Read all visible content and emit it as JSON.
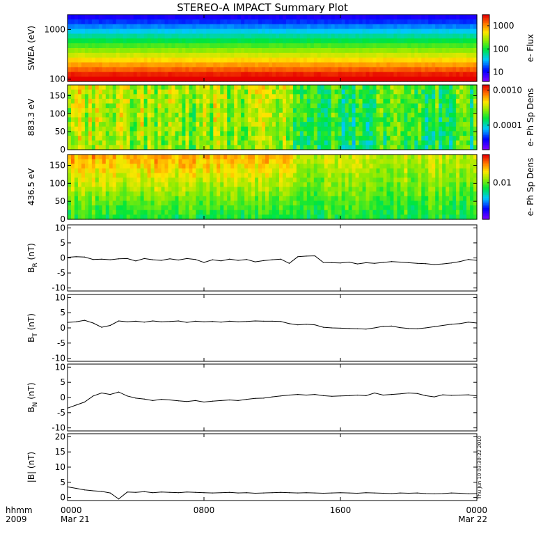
{
  "chart_data": [
    {
      "type": "heatmap",
      "title": "STEREO-A IMPACT Summary Plot",
      "ylabel": "SWEA (eV)",
      "y_scale": "log",
      "ylim": [
        90,
        2000
      ],
      "y_ticks": [
        "100",
        "1000"
      ],
      "colorbar": {
        "label": "e- Flux",
        "scale": "log",
        "ticks": [
          "10",
          "100",
          "1000"
        ],
        "range": [
          4,
          3000
        ]
      },
      "colormap": "rainbow"
    },
    {
      "type": "heatmap",
      "ylabel": "883.3 eV",
      "ylim": [
        0,
        180
      ],
      "y_ticks": [
        "0",
        "50",
        "100",
        "150"
      ],
      "colorbar": {
        "label": "e- Ph Sp Dens",
        "scale": "log",
        "ticks": [
          "0.0001",
          "0.0010"
        ],
        "range": [
          2e-05,
          0.0014
        ]
      },
      "colormap": "rainbow"
    },
    {
      "type": "heatmap",
      "ylabel": "436.5 eV",
      "ylim": [
        0,
        180
      ],
      "y_ticks": [
        "0",
        "50",
        "100",
        "150"
      ],
      "colorbar": {
        "label": "e- Ph Sp Dens",
        "scale": "log",
        "ticks": [
          "0.01"
        ],
        "range": [
          0.001,
          0.06
        ]
      },
      "colormap": "rainbow"
    },
    {
      "type": "line",
      "ylabel_main": "B",
      "ylabel_sub": "R",
      "ylabel_unit": " (nT)",
      "ylim": [
        -11,
        11
      ],
      "y_ticks": [
        -10,
        -5,
        0,
        5,
        10
      ],
      "x": [
        0,
        0.5,
        1,
        1.5,
        2,
        2.5,
        3,
        3.5,
        4,
        4.5,
        5,
        5.5,
        6,
        6.5,
        7,
        7.5,
        8,
        8.5,
        9,
        9.5,
        10,
        10.5,
        11,
        11.5,
        12,
        12.5,
        13,
        13.5,
        14,
        14.5,
        15,
        15.5,
        16,
        16.5,
        17,
        17.5,
        18,
        18.5,
        19,
        19.5,
        20,
        20.5,
        21,
        21.5,
        22,
        22.5,
        23,
        23.5,
        24
      ],
      "values": [
        0.2,
        0.4,
        0.3,
        -0.5,
        -0.4,
        -0.6,
        -0.3,
        -0.2,
        -1.0,
        -0.2,
        -0.6,
        -0.8,
        -0.3,
        -0.7,
        -0.2,
        -0.5,
        -1.5,
        -0.6,
        -1.0,
        -0.4,
        -0.8,
        -0.5,
        -1.3,
        -0.9,
        -0.6,
        -0.4,
        -1.8,
        0.4,
        0.6,
        0.7,
        -1.5,
        -1.6,
        -1.7,
        -1.4,
        -2.0,
        -1.6,
        -1.8,
        -1.5,
        -1.2,
        -1.4,
        -1.6,
        -1.8,
        -1.9,
        -2.2,
        -2.0,
        -1.7,
        -1.2,
        -0.5,
        -0.8
      ]
    },
    {
      "type": "line",
      "ylabel_main": "B",
      "ylabel_sub": "T",
      "ylabel_unit": " (nT)",
      "ylim": [
        -11,
        11
      ],
      "y_ticks": [
        -10,
        -5,
        0,
        5,
        10
      ],
      "x": [
        0,
        0.5,
        1,
        1.5,
        2,
        2.5,
        3,
        3.5,
        4,
        4.5,
        5,
        5.5,
        6,
        6.5,
        7,
        7.5,
        8,
        8.5,
        9,
        9.5,
        10,
        10.5,
        11,
        11.5,
        12,
        12.5,
        13,
        13.5,
        14,
        14.5,
        15,
        15.5,
        16,
        16.5,
        17,
        17.5,
        18,
        18.5,
        19,
        19.5,
        20,
        20.5,
        21,
        21.5,
        22,
        22.5,
        23,
        23.5,
        24
      ],
      "values": [
        1.8,
        2.0,
        2.5,
        1.6,
        0.2,
        0.8,
        2.3,
        2.0,
        2.2,
        1.9,
        2.3,
        2.0,
        2.1,
        2.3,
        1.8,
        2.2,
        2.0,
        2.1,
        1.9,
        2.2,
        2.0,
        2.1,
        2.3,
        2.2,
        2.2,
        2.1,
        1.4,
        1.0,
        1.2,
        1.0,
        0.2,
        0.0,
        -0.1,
        -0.2,
        -0.3,
        -0.4,
        0.0,
        0.5,
        0.6,
        0.1,
        -0.2,
        -0.3,
        0.0,
        0.4,
        0.8,
        1.2,
        1.4,
        1.9,
        1.6
      ]
    },
    {
      "type": "line",
      "ylabel_main": "B",
      "ylabel_sub": "N",
      "ylabel_unit": " (nT)",
      "ylim": [
        -11,
        11
      ],
      "y_ticks": [
        -10,
        -5,
        0,
        5,
        10
      ],
      "x": [
        0,
        0.5,
        1,
        1.5,
        2,
        2.5,
        3,
        3.5,
        4,
        4.5,
        5,
        5.5,
        6,
        6.5,
        7,
        7.5,
        8,
        8.5,
        9,
        9.5,
        10,
        10.5,
        11,
        11.5,
        12,
        12.5,
        13,
        13.5,
        14,
        14.5,
        15,
        15.5,
        16,
        16.5,
        17,
        17.5,
        18,
        18.5,
        19,
        19.5,
        20,
        20.5,
        21,
        21.5,
        22,
        22.5,
        23,
        23.5,
        24
      ],
      "values": [
        -3.5,
        -2.5,
        -1.5,
        0.5,
        1.5,
        1.0,
        1.8,
        0.5,
        -0.2,
        -0.5,
        -1.0,
        -0.6,
        -0.8,
        -1.1,
        -1.3,
        -1.0,
        -1.5,
        -1.2,
        -1.0,
        -0.8,
        -1.0,
        -0.6,
        -0.3,
        -0.2,
        0.2,
        0.5,
        0.8,
        1.0,
        0.8,
        1.0,
        0.6,
        0.4,
        0.5,
        0.6,
        0.8,
        0.6,
        1.5,
        0.8,
        1.0,
        1.2,
        1.5,
        1.3,
        0.6,
        0.2,
        0.9,
        0.7,
        0.8,
        0.9,
        0.5
      ]
    },
    {
      "type": "line",
      "ylabel": "|B| (nT)",
      "ylim": [
        -1,
        21
      ],
      "y_ticks": [
        0,
        5,
        10,
        15,
        20
      ],
      "x": [
        0,
        0.5,
        1,
        1.5,
        2,
        2.5,
        3,
        3.5,
        4,
        4.5,
        5,
        5.5,
        6,
        6.5,
        7,
        7.5,
        8,
        8.5,
        9,
        9.5,
        10,
        10.5,
        11,
        11.5,
        12,
        12.5,
        13,
        13.5,
        14,
        14.5,
        15,
        15.5,
        16,
        16.5,
        17,
        17.5,
        18,
        18.5,
        19,
        19.5,
        20,
        20.5,
        21,
        21.5,
        22,
        22.5,
        23,
        23.5,
        24
      ],
      "values": [
        3.5,
        3.0,
        2.5,
        2.2,
        2.0,
        1.5,
        -0.5,
        1.8,
        1.7,
        1.9,
        1.6,
        1.8,
        1.7,
        1.6,
        1.8,
        1.7,
        1.6,
        1.5,
        1.6,
        1.7,
        1.5,
        1.6,
        1.4,
        1.5,
        1.6,
        1.7,
        1.6,
        1.5,
        1.6,
        1.5,
        1.4,
        1.5,
        1.6,
        1.5,
        1.4,
        1.6,
        1.5,
        1.4,
        1.3,
        1.5,
        1.4,
        1.5,
        1.3,
        1.2,
        1.3,
        1.5,
        1.4,
        1.2,
        1.3
      ]
    }
  ],
  "x_axis": {
    "row1_label": "hhmm",
    "row2_label": "2009",
    "ticks": [
      {
        "text": "0000",
        "date": "Mar 21",
        "hour": 0
      },
      {
        "text": "0800",
        "date": "",
        "hour": 8
      },
      {
        "text": "1600",
        "date": "",
        "hour": 16
      },
      {
        "text": "0000",
        "date": "Mar 22",
        "hour": 24
      }
    ]
  },
  "timestamp": "Thu Jun 10 03:30:22 2010"
}
